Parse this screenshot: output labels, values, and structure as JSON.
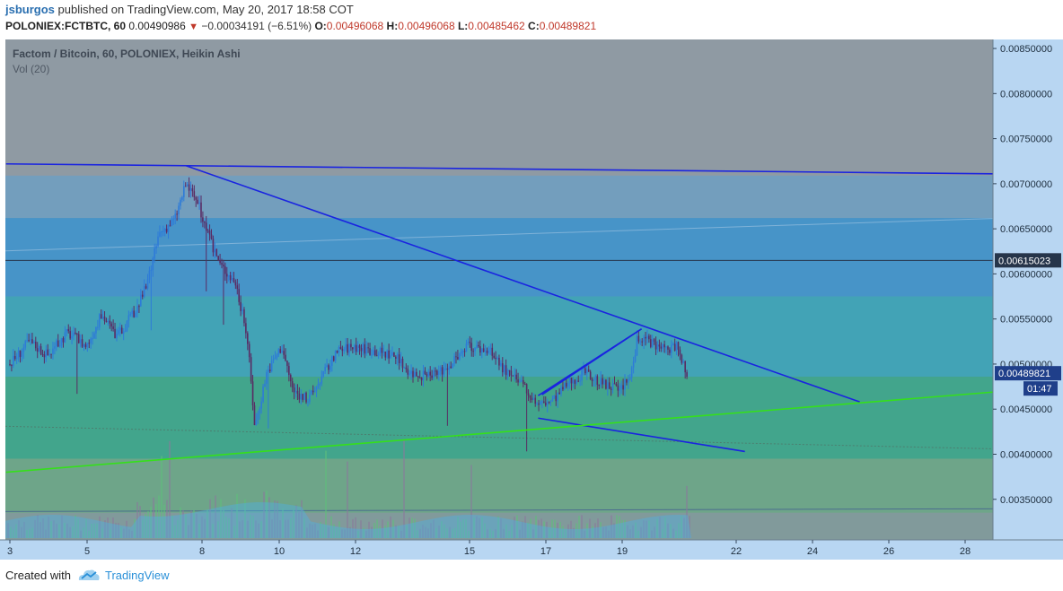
{
  "header": {
    "username": "jsburgos",
    "published_text": "published on TradingView.com, May 20, 2017 18:58 COT",
    "symbol": "POLONIEX:FCTBTC, 60",
    "last": "0.00490986",
    "change": "−0.00034191 (−6.51%)",
    "o_label": "O:",
    "o_value": "0.00496068",
    "h_label": "H:",
    "h_value": "0.00496068",
    "l_label": "L:",
    "l_value": "0.00485462",
    "c_label": "C:",
    "c_value": "0.00489821"
  },
  "chart": {
    "legend_title": "Factom / Bitcoin, 60, POLONIEX, Heikin Ashi",
    "volume_label": "Vol (20)",
    "price_badge": "0.00489821",
    "level_badge": "0.00615023",
    "countdown": "01:47",
    "colors": {
      "bg": "#8f9aa3",
      "price_axis_bg": "#b8d6f2",
      "trend_line": "#1a24e0",
      "support_line": "#35e01a",
      "badge_blue": "#1f3f8a",
      "badge_dark": "#26354a",
      "bull": "#2e7bd8",
      "bear": "#5a2b63"
    }
  },
  "chart_data": {
    "type": "candlestick",
    "title": "Factom / Bitcoin, 60, POLONIEX, Heikin Ashi",
    "y_ticks": [
      "0.00850000",
      "0.00800000",
      "0.00750000",
      "0.00700000",
      "0.00650000",
      "0.00600000",
      "0.00550000",
      "0.00500000",
      "0.00450000",
      "0.00400000",
      "0.00350000"
    ],
    "ylim": [
      0.00305,
      0.0086
    ],
    "x_ticks": [
      "3",
      "5",
      "8",
      "10",
      "12",
      "15",
      "17",
      "19",
      "22",
      "24",
      "26",
      "28"
    ],
    "price_path": [
      [
        3.0,
        0.005
      ],
      [
        3.5,
        0.00525
      ],
      [
        4.0,
        0.0051
      ],
      [
        4.5,
        0.00535
      ],
      [
        5.0,
        0.0052
      ],
      [
        5.4,
        0.00555
      ],
      [
        5.8,
        0.0053
      ],
      [
        6.3,
        0.0056
      ],
      [
        6.6,
        0.0059
      ],
      [
        6.9,
        0.00645
      ],
      [
        7.3,
        0.0066
      ],
      [
        7.6,
        0.007
      ],
      [
        7.9,
        0.0068
      ],
      [
        8.2,
        0.0064
      ],
      [
        8.5,
        0.0061
      ],
      [
        8.9,
        0.0059
      ],
      [
        9.2,
        0.0053
      ],
      [
        9.4,
        0.0043
      ],
      [
        9.7,
        0.0049
      ],
      [
        10.1,
        0.0052
      ],
      [
        10.4,
        0.0047
      ],
      [
        10.8,
        0.0046
      ],
      [
        11.2,
        0.0049
      ],
      [
        11.6,
        0.00515
      ],
      [
        12.0,
        0.0052
      ],
      [
        12.5,
        0.00515
      ],
      [
        13.0,
        0.0051
      ],
      [
        13.5,
        0.0049
      ],
      [
        14.0,
        0.00485
      ],
      [
        14.5,
        0.005
      ],
      [
        15.0,
        0.0052
      ],
      [
        15.5,
        0.00515
      ],
      [
        16.0,
        0.0049
      ],
      [
        16.4,
        0.00475
      ],
      [
        16.8,
        0.00455
      ],
      [
        17.2,
        0.0046
      ],
      [
        17.6,
        0.0048
      ],
      [
        18.0,
        0.0049
      ],
      [
        18.5,
        0.00478
      ],
      [
        18.9,
        0.0047
      ],
      [
        19.2,
        0.00485
      ],
      [
        19.4,
        0.0053
      ],
      [
        19.7,
        0.00525
      ],
      [
        20.1,
        0.00515
      ],
      [
        20.4,
        0.0052
      ],
      [
        20.7,
        0.0049
      ]
    ],
    "levels": [
      {
        "name": "horizontal",
        "value": 0.00615
      }
    ],
    "trendlines": [
      {
        "from": [
          2.9,
          0.00722
        ],
        "to": [
          28.7,
          0.00711
        ],
        "color": "#1a24e0"
      },
      {
        "from": [
          7.6,
          0.0072
        ],
        "to": [
          25.2,
          0.00458
        ],
        "color": "#1a24e0"
      },
      {
        "from": [
          16.8,
          0.0044
        ],
        "to": [
          22.2,
          0.00403
        ],
        "color": "#1a24e0"
      },
      {
        "from": [
          16.8,
          0.00465
        ],
        "to": [
          19.5,
          0.00539
        ],
        "color": "#1a24e0"
      },
      {
        "from": [
          2.9,
          0.0038
        ],
        "to": [
          28.7,
          0.00469
        ],
        "color": "#35e01a"
      }
    ],
    "volume_axis_grid": false
  },
  "footer": {
    "created_with": "Created with",
    "brand": "TradingView"
  }
}
